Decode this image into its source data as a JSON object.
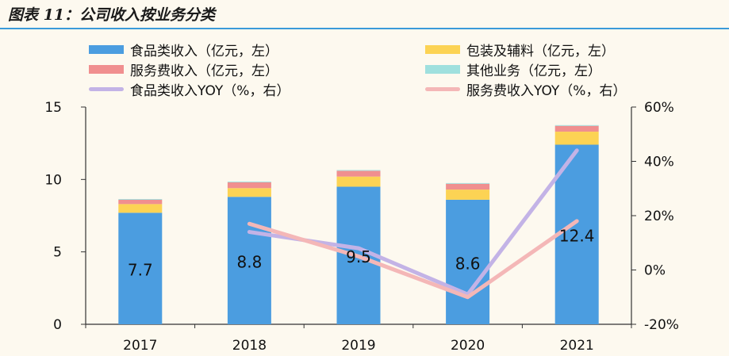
{
  "header": {
    "title": "图表 11：公司收入按业务分类"
  },
  "colors": {
    "food": "#4b9de0",
    "packaging": "#fcd354",
    "service": "#f08f8f",
    "other": "#9fe0de",
    "food_yoy": "#c3b3e6",
    "service_yoy": "#f4b7b7",
    "axis": "#333333",
    "text": "#111111",
    "rule": "#3a9ad9"
  },
  "legend": [
    {
      "label": "食品类收入（亿元，左）",
      "kind": "bar",
      "color": "#4b9de0"
    },
    {
      "label": "包装及辅料（亿元，左）",
      "kind": "bar",
      "color": "#fcd354"
    },
    {
      "label": "服务费收入（亿元，左）",
      "kind": "bar",
      "color": "#f08f8f"
    },
    {
      "label": "其他业务（亿元，左）",
      "kind": "bar",
      "color": "#9fe0de"
    },
    {
      "label": "食品类收入YOY（%，右）",
      "kind": "line",
      "color": "#c3b3e6"
    },
    {
      "label": "服务费收入YOY（%，右）",
      "kind": "line",
      "color": "#f4b7b7"
    }
  ],
  "chart_data": {
    "type": "bar",
    "stacked": true,
    "categories": [
      "2017",
      "2018",
      "2019",
      "2020",
      "2021"
    ],
    "series": [
      {
        "name": "食品类收入（亿元，左）",
        "values": [
          7.7,
          8.8,
          9.5,
          8.6,
          12.4
        ],
        "data_labels": [
          "7.7",
          "8.8",
          "9.5",
          "8.6",
          "12.4"
        ]
      },
      {
        "name": "包装及辅料（亿元，左）",
        "values": [
          0.6,
          0.6,
          0.7,
          0.7,
          0.9
        ]
      },
      {
        "name": "服务费收入（亿元，左）",
        "values": [
          0.3,
          0.4,
          0.4,
          0.4,
          0.4
        ]
      },
      {
        "name": "其他业务（亿元，左）",
        "values": [
          0.05,
          0.05,
          0.05,
          0.05,
          0.05
        ]
      }
    ],
    "line_series": [
      {
        "name": "食品类收入YOY（%，右）",
        "axis": "right",
        "values": [
          null,
          14,
          8,
          -9,
          44
        ]
      },
      {
        "name": "服务费收入YOY（%，右）",
        "axis": "right",
        "values": [
          null,
          17,
          5,
          -10,
          18
        ]
      }
    ],
    "y_left": {
      "min": 0,
      "max": 15,
      "ticks": [
        0,
        5,
        10,
        15
      ],
      "tick_labels": [
        "0",
        "5",
        "10",
        "15"
      ]
    },
    "y_right": {
      "min": -20,
      "max": 60,
      "ticks": [
        -20,
        0,
        20,
        40,
        60
      ],
      "tick_labels": [
        "-20%",
        "0%",
        "20%",
        "40%",
        "60%"
      ]
    },
    "xlabel": "",
    "ylabel": "",
    "grid": false,
    "legend_position": "top"
  }
}
